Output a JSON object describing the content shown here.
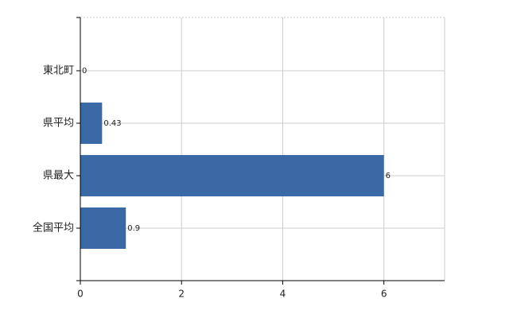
{
  "chart_data": {
    "type": "barh",
    "categories": [
      "東北町",
      "県平均",
      "県最大",
      "全国平均"
    ],
    "values": [
      0,
      0.43,
      6,
      0.9
    ],
    "color": "#3a69a5",
    "xlim": [
      0,
      7.2
    ],
    "xticks": [
      0,
      2,
      4,
      6
    ],
    "grid": true
  }
}
